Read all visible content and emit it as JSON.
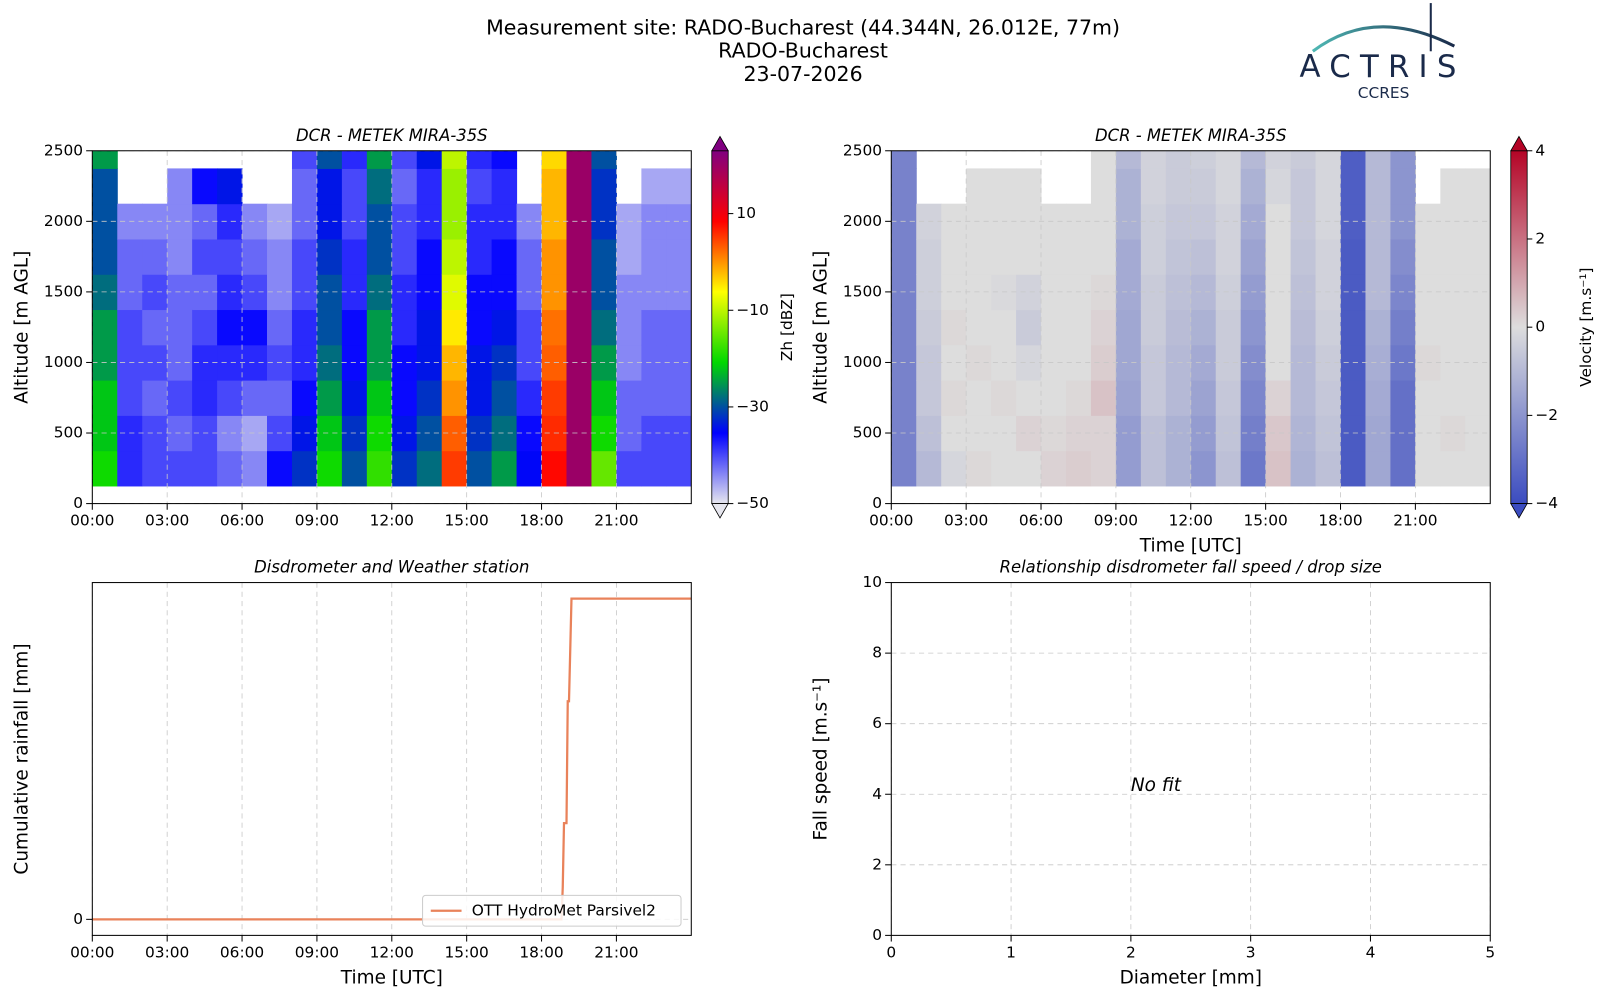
{
  "header": {
    "title_lines": [
      "Measurement site: RADO-Bucharest (44.344N, 26.012E, 77m)",
      "RADO-Bucharest",
      "23-07-2026"
    ],
    "logo": [
      "ACTRIS",
      "CCRES"
    ]
  },
  "chart_data": [
    {
      "type": "heatmap",
      "title": "DCR - METEK MIRA-35S",
      "ylabel": "Altitude [m AGL]",
      "x": [
        0.5,
        1.5,
        2.5,
        3.5,
        4.5,
        5.5,
        6.5,
        7.5,
        8.5,
        9.5,
        10.5,
        11.5,
        12.5,
        13.5,
        14.5,
        15.5,
        16.5,
        17.5,
        18.5,
        19.5,
        20.5,
        21.5,
        22.5,
        23.5
      ],
      "y": [
        250,
        500,
        750,
        1000,
        1250,
        1500,
        1750,
        2000,
        2250,
        2500
      ],
      "z": [
        [
          -20,
          -22,
          -22,
          -25,
          -25,
          -28,
          -30,
          -30,
          -30,
          -25
        ],
        [
          -38,
          -38,
          -40,
          -40,
          -40,
          -42,
          -42,
          -44,
          null,
          null
        ],
        [
          -40,
          -40,
          -42,
          -40,
          -42,
          -40,
          -42,
          -44,
          null,
          null
        ],
        [
          -40,
          -42,
          -40,
          -42,
          -42,
          -42,
          -44,
          -44,
          -44,
          null
        ],
        [
          -40,
          -40,
          -38,
          -38,
          -40,
          -42,
          -40,
          -42,
          -36,
          null
        ],
        [
          -42,
          -44,
          -40,
          -38,
          -36,
          -38,
          -40,
          -38,
          -34,
          null
        ],
        [
          -44,
          -46,
          -42,
          -38,
          -36,
          -40,
          -42,
          -44,
          null,
          null
        ],
        [
          -36,
          -40,
          -42,
          -40,
          -42,
          -44,
          -44,
          -46,
          null,
          null
        ],
        [
          -32,
          -34,
          -36,
          -38,
          -38,
          -40,
          -40,
          -42,
          -42,
          -40
        ],
        [
          -20,
          -22,
          -25,
          -28,
          -30,
          -30,
          -32,
          -34,
          -34,
          -30
        ],
        [
          -30,
          -32,
          -34,
          -36,
          -36,
          -38,
          -38,
          -40,
          -40,
          -38
        ],
        [
          -18,
          -20,
          -22,
          -25,
          -25,
          -28,
          -30,
          -30,
          -28,
          -25
        ],
        [
          -32,
          -34,
          -36,
          -36,
          -38,
          -38,
          -40,
          -40,
          -42,
          -40
        ],
        [
          -28,
          -30,
          -32,
          -34,
          -34,
          -36,
          -36,
          -38,
          -38,
          -34
        ],
        [
          5,
          3,
          0,
          -2,
          -5,
          -8,
          -10,
          -12,
          -12,
          -10
        ],
        [
          -30,
          -32,
          -34,
          -34,
          -36,
          -36,
          -38,
          -38,
          -40,
          -38
        ],
        [
          -25,
          -28,
          -30,
          -32,
          -34,
          -36,
          -36,
          -38,
          -38,
          -36
        ],
        [
          -35,
          -36,
          -38,
          -40,
          -40,
          -42,
          -42,
          -44,
          null,
          null
        ],
        [
          8,
          6,
          5,
          3,
          2,
          0,
          0,
          -2,
          -2,
          -4
        ],
        [
          20,
          20,
          20,
          20,
          20,
          20,
          20,
          20,
          20,
          20
        ],
        [
          -15,
          -20,
          -22,
          -25,
          -28,
          -30,
          -30,
          -32,
          -32,
          -30
        ],
        [
          -40,
          -42,
          -42,
          -44,
          -44,
          -44,
          -46,
          -46,
          null,
          null
        ],
        [
          -40,
          -40,
          -42,
          -42,
          -42,
          -44,
          -44,
          -44,
          -46,
          null
        ],
        [
          -40,
          -40,
          -42,
          -42,
          -42,
          -44,
          -44,
          -44,
          -46,
          null
        ]
      ],
      "xlim": [
        0,
        24
      ],
      "xticks": [
        {
          "value": 0,
          "label": "00:00"
        },
        {
          "value": 3,
          "label": "03:00"
        },
        {
          "value": 6,
          "label": "06:00"
        },
        {
          "value": 9,
          "label": "09:00"
        },
        {
          "value": 12,
          "label": "12:00"
        },
        {
          "value": 15,
          "label": "15:00"
        },
        {
          "value": 18,
          "label": "18:00"
        },
        {
          "value": 21,
          "label": "21:00"
        }
      ],
      "ylim": [
        0,
        2500
      ],
      "yticks": [
        0,
        500,
        1000,
        1500,
        2000,
        2500
      ],
      "grid": true,
      "colorbar": {
        "label": "Zh [dBZ]",
        "clim": [
          -50,
          23
        ],
        "colors": [
          "#e6e6ee",
          "#0000ff",
          "#00d800",
          "#ffff00",
          "#ff0000",
          "#800080"
        ],
        "ticks": [
          {
            "value": -50,
            "label": "−50"
          },
          {
            "value": -30,
            "label": "−30"
          },
          {
            "value": -10,
            "label": "−10"
          },
          10
        ]
      }
    },
    {
      "type": "heatmap",
      "title": "DCR - METEK MIRA-35S",
      "ylabel": "Altitude [m AGL]",
      "xlabel": "Time [UTC]",
      "x": [
        0.5,
        1.5,
        2.5,
        3.5,
        4.5,
        5.5,
        6.5,
        7.5,
        8.5,
        9.5,
        10.5,
        11.5,
        12.5,
        13.5,
        14.5,
        15.5,
        16.5,
        17.5,
        18.5,
        19.5,
        20.5,
        21.5,
        22.5,
        23.5
      ],
      "y": [
        250,
        500,
        750,
        1000,
        1250,
        1500,
        1750,
        2000,
        2250,
        2500
      ],
      "z": [
        [
          -2.5,
          -2.5,
          -2.5,
          -2.5,
          -2.5,
          -2.5,
          -2.5,
          -2.5,
          -2.5,
          -2.5
        ],
        [
          -1,
          -0.8,
          -0.6,
          -0.6,
          -0.5,
          -0.4,
          -0.4,
          -0.3,
          null,
          null
        ],
        [
          -0.2,
          0,
          0.1,
          0,
          0.1,
          0,
          0,
          0,
          null,
          null
        ],
        [
          0.1,
          0,
          0,
          0.1,
          0,
          0,
          0,
          0,
          0,
          null
        ],
        [
          0,
          0,
          0.1,
          0,
          0,
          -0.1,
          0,
          0,
          0,
          null
        ],
        [
          0,
          0.2,
          0,
          -0.2,
          -0.5,
          -0.3,
          0,
          0,
          0,
          null
        ],
        [
          0.2,
          0.1,
          0,
          0,
          0,
          0,
          0,
          0,
          null,
          null
        ],
        [
          0.3,
          0.2,
          0.1,
          0,
          0,
          0,
          0,
          0,
          null,
          null
        ],
        [
          0.2,
          0.2,
          0.5,
          0.3,
          0.2,
          0.1,
          0,
          0,
          0,
          0
        ],
        [
          -1.8,
          -1.8,
          -1.6,
          -1.5,
          -1.5,
          -1.4,
          -1.4,
          -1.2,
          -1.2,
          -1
        ],
        [
          -0.8,
          -0.8,
          -0.6,
          -0.6,
          -0.5,
          -0.5,
          -0.4,
          -0.4,
          -0.3,
          -0.3
        ],
        [
          -1.2,
          -1.2,
          -1,
          -1,
          -0.9,
          -0.8,
          -0.7,
          -0.6,
          -0.5,
          -0.5
        ],
        [
          -2,
          -1.8,
          -1.6,
          -1.4,
          -1.2,
          -1,
          -0.8,
          -0.6,
          -0.5,
          -0.4
        ],
        [
          -0.8,
          -0.7,
          -0.6,
          -0.5,
          -0.5,
          -0.4,
          -0.3,
          -0.3,
          -0.2,
          -0.2
        ],
        [
          -2.8,
          -2.6,
          -2.4,
          -2.2,
          -2,
          -1.8,
          -1.6,
          -1.4,
          -1.2,
          -1
        ],
        [
          0.5,
          0.4,
          0.2,
          0,
          0,
          0,
          0,
          0,
          -0.2,
          -0.3
        ],
        [
          -1.2,
          -1.1,
          -1,
          -1,
          -0.9,
          -0.8,
          -0.7,
          -0.6,
          -0.6,
          -0.5
        ],
        [
          -0.8,
          -0.7,
          -0.6,
          -0.5,
          -0.4,
          -0.3,
          -0.3,
          -0.2,
          -0.2,
          -0.2
        ],
        [
          -3.6,
          -3.6,
          -3.6,
          -3.6,
          -3.6,
          -3.6,
          -3.6,
          -3.5,
          -3.5,
          -3.5
        ],
        [
          -1.5,
          -1.5,
          -1.4,
          -1.3,
          -1.2,
          -1,
          -1,
          -1,
          -1,
          -1
        ],
        [
          -3,
          -3,
          -3,
          -2.8,
          -2.6,
          -2.4,
          -2.2,
          -2,
          -2,
          -2
        ],
        [
          0,
          0,
          0,
          0.1,
          0,
          0,
          0,
          0,
          null,
          null
        ],
        [
          0,
          0.1,
          0,
          0,
          0,
          0,
          0,
          0,
          0,
          null
        ],
        [
          0,
          0,
          0,
          0,
          0,
          0,
          0,
          0,
          0,
          null
        ]
      ],
      "xlim": [
        0,
        24
      ],
      "xticks": [
        {
          "value": 0,
          "label": "00:00"
        },
        {
          "value": 3,
          "label": "03:00"
        },
        {
          "value": 6,
          "label": "06:00"
        },
        {
          "value": 9,
          "label": "09:00"
        },
        {
          "value": 12,
          "label": "12:00"
        },
        {
          "value": 15,
          "label": "15:00"
        },
        {
          "value": 18,
          "label": "18:00"
        },
        {
          "value": 21,
          "label": "21:00"
        }
      ],
      "ylim": [
        0,
        2500
      ],
      "yticks": [
        0,
        500,
        1000,
        1500,
        2000,
        2500
      ],
      "grid": true,
      "colorbar": {
        "label": "Velocity [m.s⁻¹]",
        "clim": [
          -4,
          4
        ],
        "colors": [
          "#3b4cc0",
          "#dddddd",
          "#b40426"
        ],
        "ticks": [
          {
            "value": -4,
            "label": "−4"
          },
          {
            "value": -2,
            "label": "−2"
          },
          0,
          2,
          4
        ]
      }
    },
    {
      "type": "line",
      "title": "Disdrometer and Weather station",
      "ylabel": "Cumulative rainfall [mm]",
      "xlabel": "Time [UTC]",
      "x": [
        0,
        18.8,
        18.85,
        18.9,
        19.0,
        19.05,
        19.1,
        19.2,
        24
      ],
      "series": [
        {
          "name": "OTT HydroMet Parsivel2",
          "color": "#e9825a",
          "values": [
            0,
            0,
            1,
            3,
            3,
            6.8,
            6.8,
            10,
            10
          ]
        }
      ],
      "xlim": [
        0,
        24
      ],
      "xticks": [
        {
          "value": 0,
          "label": "00:00"
        },
        {
          "value": 3,
          "label": "03:00"
        },
        {
          "value": 6,
          "label": "06:00"
        },
        {
          "value": 9,
          "label": "09:00"
        },
        {
          "value": 12,
          "label": "12:00"
        },
        {
          "value": 15,
          "label": "15:00"
        },
        {
          "value": 18,
          "label": "18:00"
        },
        {
          "value": 21,
          "label": "21:00"
        }
      ],
      "ylim": [
        -0.5,
        10.5
      ],
      "yticks": [
        0
      ],
      "grid": true,
      "legend": "lower right"
    },
    {
      "type": "scatter",
      "title": "Relationship disdrometer fall speed / drop size",
      "ylabel": "Fall speed [m.s⁻¹]",
      "xlabel": "Diameter [mm]",
      "annotation": "No fit",
      "xlim": [
        0,
        5
      ],
      "xticks": [
        0,
        1,
        2,
        3,
        4,
        5
      ],
      "ylim": [
        0,
        10
      ],
      "yticks": [
        0,
        2,
        4,
        6,
        8,
        10
      ],
      "grid": true
    }
  ]
}
